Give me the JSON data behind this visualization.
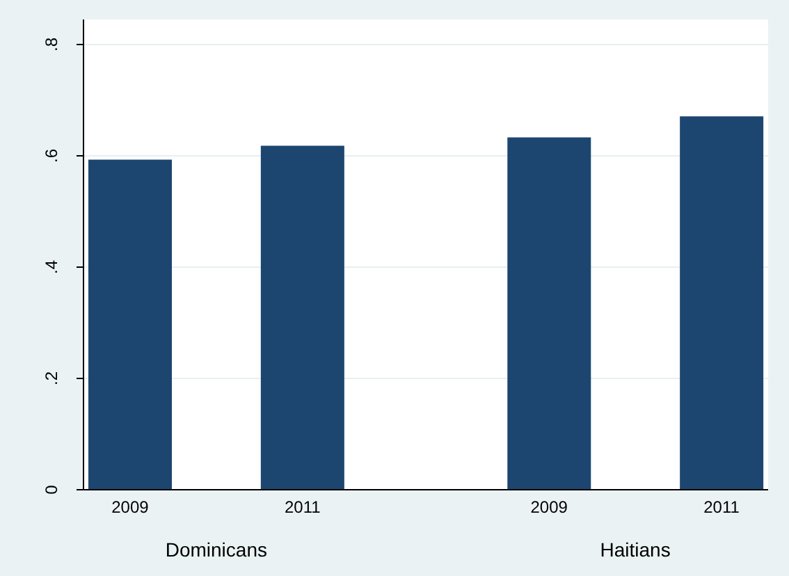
{
  "chart_data": {
    "type": "bar",
    "categories": [
      "2009",
      "2011",
      "2009",
      "2011"
    ],
    "values": [
      0.593,
      0.618,
      0.633,
      0.671
    ],
    "color": "#1c4670",
    "annotations": [
      "Dominicans",
      "Haitians"
    ],
    "ylim": [
      0,
      0.845
    ],
    "yticks": [
      0,
      {
        "value": 0.2,
        "label": ".2"
      },
      {
        "value": 0.4,
        "label": ".4"
      },
      {
        "value": 0.6,
        "label": ".6"
      },
      {
        "value": 0.8,
        "label": ".8"
      }
    ],
    "grid": "y"
  }
}
